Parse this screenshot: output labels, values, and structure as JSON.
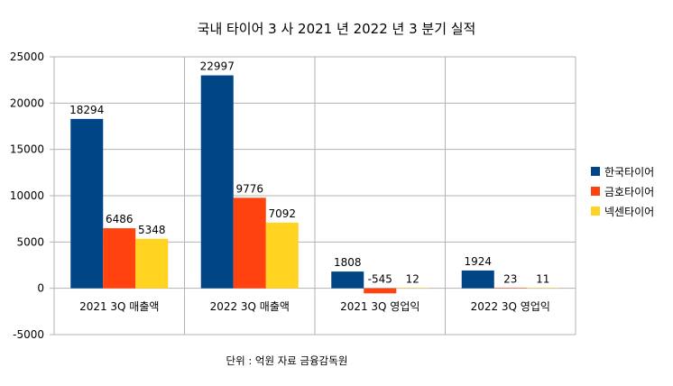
{
  "chart_data": {
    "type": "bar",
    "title": "국내 타이어  3 사  2021 년  2022 년  3 분기 실적",
    "categories": [
      "2021 3Q  매출액",
      "2022 3Q  매출액",
      "2021 3Q  영업익",
      "2022 3Q  영업익"
    ],
    "series": [
      {
        "name": "한국타이어",
        "color": "#004586",
        "values": [
          18294,
          22997,
          1808,
          1924
        ]
      },
      {
        "name": "금호타이어",
        "color": "#ff420e",
        "values": [
          6486,
          9776,
          -545,
          23
        ]
      },
      {
        "name": "넥센타이어",
        "color": "#ffd320",
        "values": [
          5348,
          7092,
          12,
          11
        ]
      }
    ],
    "ylim": [
      -5000,
      25000
    ],
    "yticks": [
      "25000",
      "20000",
      "15000",
      "10000",
      "5000",
      "0",
      "-5000"
    ],
    "ytick_values": [
      25000,
      20000,
      15000,
      10000,
      5000,
      0,
      -5000
    ],
    "grid": true,
    "legend_position": "right",
    "source_note": "단위 : 억원 자료 금융감독원"
  }
}
